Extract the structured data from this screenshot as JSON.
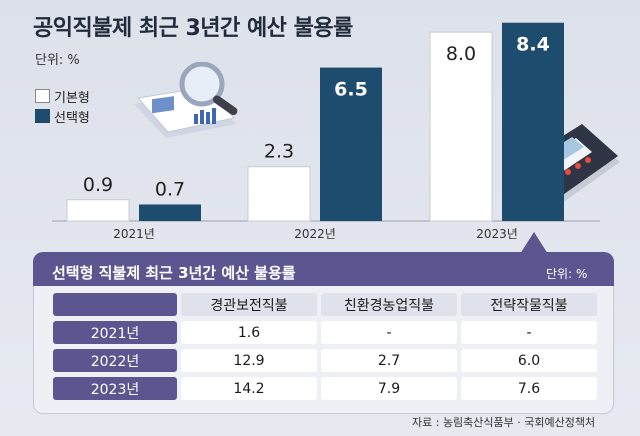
{
  "header": {
    "title": "공익직불제 최근 3년간 예산 불용률",
    "unit": "단위: %"
  },
  "legend": {
    "basic": "기본형",
    "select": "선택형"
  },
  "chart_data": {
    "type": "bar",
    "title": "공익직불제 최근 3년간 예산 불용률",
    "categories": [
      "2021년",
      "2022년",
      "2023년"
    ],
    "series": [
      {
        "name": "기본형",
        "values": [
          0.9,
          2.3,
          8.0
        ],
        "labels": [
          "0.9",
          "2.3",
          "8.0"
        ]
      },
      {
        "name": "선택형",
        "values": [
          0.7,
          6.5,
          8.4
        ],
        "labels": [
          "0.7",
          "6.5",
          "8.4"
        ]
      }
    ],
    "ylim": [
      0,
      8.6
    ],
    "colors": {
      "basic": "#ffffff",
      "select": "#1e4c6e"
    }
  },
  "table": {
    "title": "선택형 직불제 최근 3년간 예산 불용률",
    "unit": "단위: %",
    "columns": [
      "경관보전직불",
      "친환경농업직불",
      "전략작물직불"
    ],
    "rows": [
      {
        "year": "2021년",
        "values": [
          "1.6",
          "-",
          "-"
        ]
      },
      {
        "year": "2022년",
        "values": [
          "12.9",
          "2.7",
          "6.0"
        ]
      },
      {
        "year": "2023년",
        "values": [
          "14.2",
          "7.9",
          "7.6"
        ]
      }
    ]
  },
  "source": "자료 : 농림축산식품부 · 국회예산정책처",
  "colors": {
    "accent": "#5b568f",
    "select_bar": "#1e4c6e"
  },
  "icons": [
    "magnifier-report-icon",
    "calculator-icon"
  ]
}
